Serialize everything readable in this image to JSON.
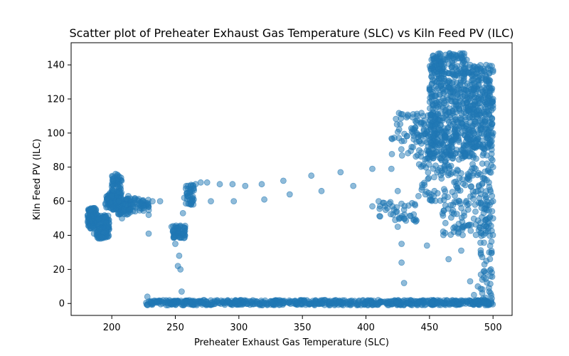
{
  "chart_data": {
    "type": "scatter",
    "title": "Scatter plot of Preheater Exhaust Gas Temperature (SLC) vs Kiln Feed PV (ILC)",
    "xlabel": "Preheater Exhaust Gas Temperature (SLC)",
    "ylabel": "Kiln Feed PV (ILC)",
    "xlim": [
      168,
      515
    ],
    "ylim": [
      -7,
      153
    ],
    "xticks": [
      200,
      250,
      300,
      350,
      400,
      450,
      500
    ],
    "yticks": [
      0,
      20,
      40,
      60,
      80,
      100,
      120,
      140
    ],
    "grid": false,
    "legend": "none",
    "marker_color": "#1f77b4",
    "marker_alpha": 0.5,
    "clusters": [
      {
        "x": [
          181,
          188
        ],
        "y": [
          44,
          56
        ],
        "n": 120
      },
      {
        "x": [
          188,
          198
        ],
        "y": [
          38,
          52
        ],
        "n": 120
      },
      {
        "x": [
          195,
          206
        ],
        "y": [
          55,
          65
        ],
        "n": 90
      },
      {
        "x": [
          200,
          208
        ],
        "y": [
          62,
          76
        ],
        "n": 70
      },
      {
        "x": [
          205,
          215
        ],
        "y": [
          52,
          62
        ],
        "n": 70
      },
      {
        "x": [
          215,
          230
        ],
        "y": [
          54,
          62
        ],
        "n": 50
      },
      {
        "x": [
          248,
          258
        ],
        "y": [
          38,
          46
        ],
        "n": 60
      },
      {
        "x": [
          258,
          265
        ],
        "y": [
          58,
          70
        ],
        "n": 40
      },
      {
        "x": [
          227,
          500
        ],
        "y": [
          -1,
          2
        ],
        "n": 700
      },
      {
        "x": [
          410,
          440
        ],
        "y": [
          48,
          60
        ],
        "n": 40
      },
      {
        "x": [
          420,
          450
        ],
        "y": [
          85,
          112
        ],
        "n": 60
      },
      {
        "x": [
          440,
          460
        ],
        "y": [
          60,
          112
        ],
        "n": 90
      },
      {
        "x": [
          450,
          480
        ],
        "y": [
          85,
          147
        ],
        "n": 500
      },
      {
        "x": [
          480,
          500
        ],
        "y": [
          90,
          140
        ],
        "n": 300
      },
      {
        "x": [
          460,
          500
        ],
        "y": [
          40,
          90
        ],
        "n": 200
      },
      {
        "x": [
          490,
          500
        ],
        "y": [
          0,
          60
        ],
        "n": 60
      }
    ],
    "points": [
      [
        232,
        60
      ],
      [
        238,
        60
      ],
      [
        255,
        7
      ],
      [
        253,
        28
      ],
      [
        252,
        22
      ],
      [
        254,
        20
      ],
      [
        266,
        70
      ],
      [
        270,
        71
      ],
      [
        275,
        71
      ],
      [
        278,
        60
      ],
      [
        285,
        70
      ],
      [
        295,
        70
      ],
      [
        296,
        60
      ],
      [
        305,
        69
      ],
      [
        318,
        70
      ],
      [
        320,
        61
      ],
      [
        335,
        72
      ],
      [
        340,
        64
      ],
      [
        357,
        75
      ],
      [
        365,
        66
      ],
      [
        380,
        77
      ],
      [
        390,
        69
      ],
      [
        405,
        79
      ],
      [
        405,
        57
      ],
      [
        410,
        60
      ],
      [
        420,
        79
      ],
      [
        425,
        66
      ],
      [
        428,
        35
      ],
      [
        428,
        24
      ],
      [
        430,
        12
      ],
      [
        425,
        45
      ],
      [
        430,
        55
      ],
      [
        440,
        100
      ],
      [
        445,
        110
      ],
      [
        448,
        34
      ],
      [
        465,
        26
      ],
      [
        470,
        45
      ],
      [
        475,
        31
      ],
      [
        482,
        13
      ],
      [
        485,
        5
      ],
      [
        488,
        10
      ],
      [
        497,
        30
      ],
      [
        498,
        16
      ],
      [
        497,
        7
      ],
      [
        499,
        3
      ],
      [
        228,
        4
      ],
      [
        229,
        52
      ],
      [
        229,
        41
      ],
      [
        213,
        63
      ],
      [
        208,
        50
      ],
      [
        186,
        41
      ],
      [
        192,
        39
      ],
      [
        201,
        72
      ],
      [
        203,
        76
      ],
      [
        247,
        45
      ],
      [
        250,
        35
      ],
      [
        256,
        53
      ],
      [
        257,
        62
      ],
      [
        261,
        65
      ],
      [
        262,
        69
      ],
      [
        423,
        49
      ],
      [
        433,
        110
      ],
      [
        437,
        100
      ],
      [
        452,
        135
      ],
      [
        455,
        140
      ],
      [
        458,
        145
      ],
      [
        462,
        143
      ],
      [
        470,
        146
      ],
      [
        475,
        146
      ],
      [
        482,
        140
      ],
      [
        490,
        138
      ],
      [
        496,
        138
      ],
      [
        500,
        136
      ],
      [
        500,
        120
      ],
      [
        500,
        100
      ],
      [
        500,
        80
      ],
      [
        500,
        60
      ],
      [
        500,
        50
      ]
    ]
  }
}
